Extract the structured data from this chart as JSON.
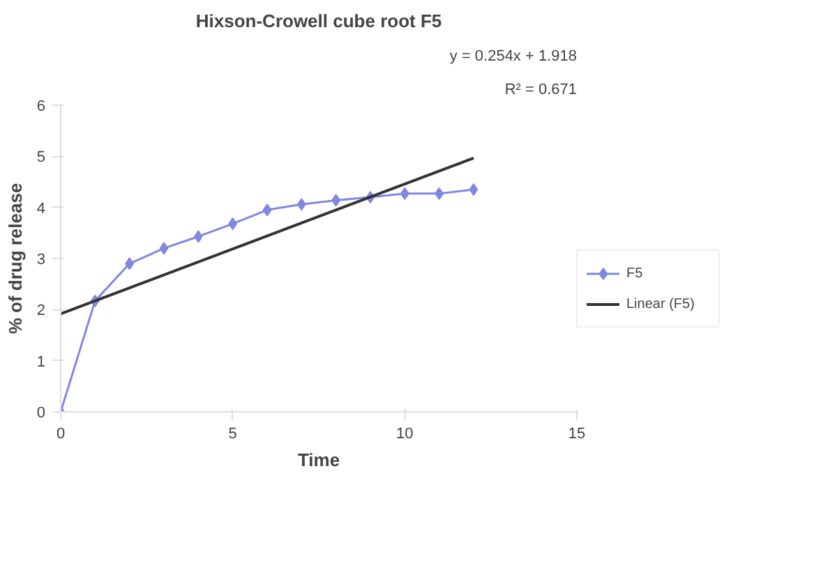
{
  "chart_data": {
    "type": "line",
    "title": "Hixson-Crowell cube root F5",
    "xlabel": "Time",
    "ylabel": "% of drug release",
    "x": [
      0,
      1,
      2,
      3,
      4,
      5,
      6,
      7,
      8,
      9,
      10,
      11,
      12
    ],
    "series": [
      {
        "name": "F5",
        "color": "#8088e0",
        "marker": "diamond",
        "values": [
          0,
          2.17,
          2.9,
          3.2,
          3.43,
          3.68,
          3.95,
          4.06,
          4.14,
          4.2,
          4.27,
          4.27,
          4.35
        ]
      },
      {
        "name": "Linear (F5)",
        "color": "#333333",
        "marker": "none",
        "x": [
          0,
          12
        ],
        "values": [
          1.918,
          4.966
        ]
      }
    ],
    "annotations": [
      "y = 0.254x + 1.918",
      "R² = 0.671"
    ],
    "xlim": [
      0,
      15
    ],
    "xticks": [
      0,
      5,
      10,
      15
    ],
    "ylim": [
      0,
      6
    ],
    "yticks": [
      0,
      1,
      2,
      3,
      4,
      5,
      6
    ],
    "grid": false,
    "legend": "right"
  }
}
